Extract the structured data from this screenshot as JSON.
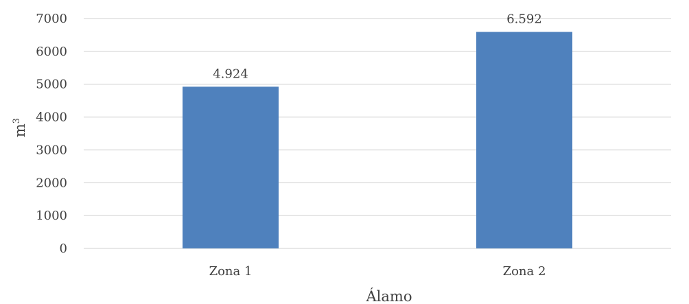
{
  "chart_data": {
    "type": "bar",
    "categories": [
      "Zona 1",
      "Zona 2"
    ],
    "values": [
      4924,
      6592
    ],
    "data_labels": [
      "4.924",
      "6.592"
    ],
    "xlabel": "Álamo",
    "ylabel_base": "m",
    "ylabel_superscript": "3",
    "ylim": [
      0,
      7000
    ],
    "yticks": [
      0,
      1000,
      2000,
      3000,
      4000,
      5000,
      6000,
      7000
    ],
    "grid": true,
    "bar_color": "#4f81bd",
    "grid_color": "#d9d9d9"
  }
}
